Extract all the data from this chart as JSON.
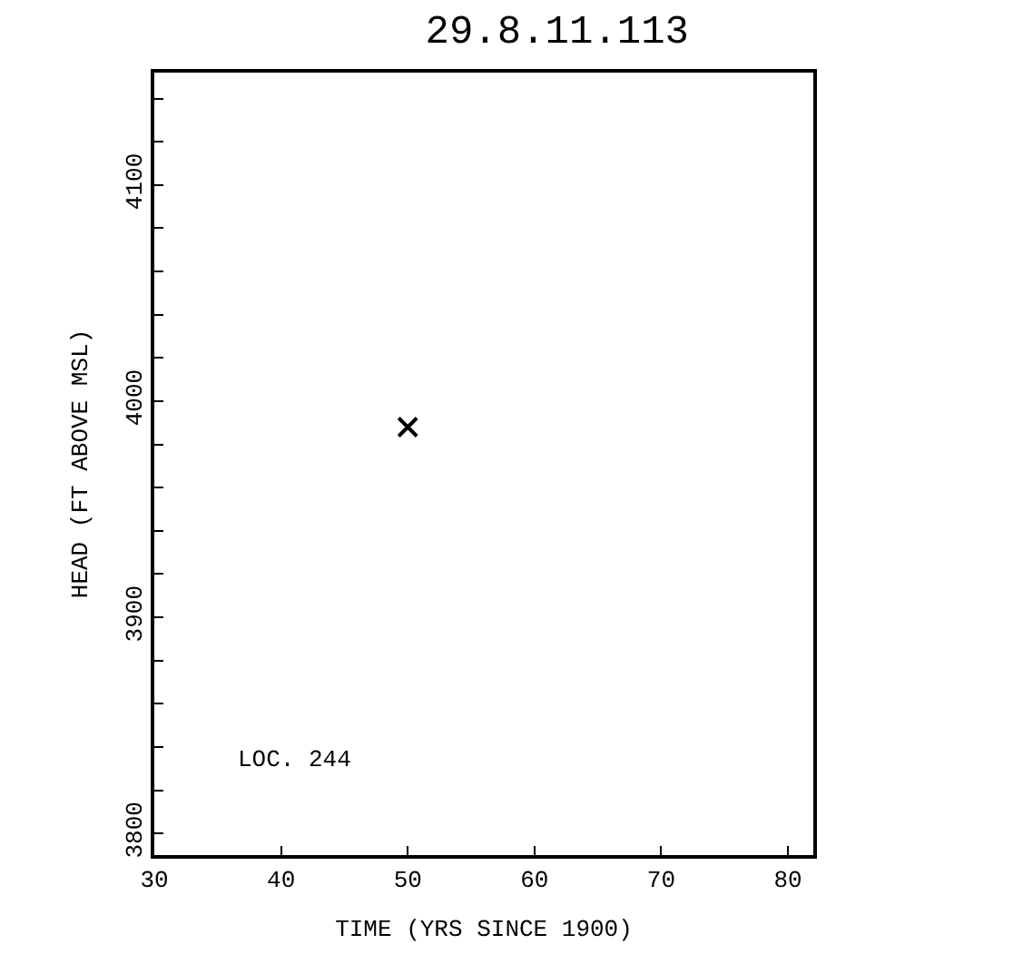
{
  "chart_data": {
    "type": "scatter",
    "title": "29.8.11.113",
    "xlabel": "TIME (YRS SINCE 1900)",
    "ylabel": "HEAD (FT ABOVE MSL)",
    "x": [
      50
    ],
    "series": [
      {
        "color": "#000000",
        "values": [
          3988
        ]
      }
    ],
    "marker": "cross",
    "xlim": [
      30,
      82
    ],
    "ylim": [
      3790,
      4152
    ],
    "xticks": [
      30,
      40,
      50,
      60,
      70,
      80
    ],
    "yticks": [
      3800,
      {
        "value": 3820,
        "label": null
      },
      {
        "value": 3840,
        "label": null
      },
      {
        "value": 3860,
        "label": null
      },
      {
        "value": 3880,
        "label": null
      },
      3900,
      {
        "value": 3920,
        "label": null
      },
      {
        "value": 3940,
        "label": null
      },
      {
        "value": 3960,
        "label": null
      },
      {
        "value": 3980,
        "label": null
      },
      4000,
      {
        "value": 4020,
        "label": null
      },
      {
        "value": 4040,
        "label": null
      },
      {
        "value": 4060,
        "label": null
      },
      {
        "value": 4080,
        "label": null
      },
      4100,
      {
        "value": 4120,
        "label": null
      },
      {
        "value": 4140,
        "label": null
      }
    ],
    "annotations": [
      "LOC. 244"
    ]
  }
}
